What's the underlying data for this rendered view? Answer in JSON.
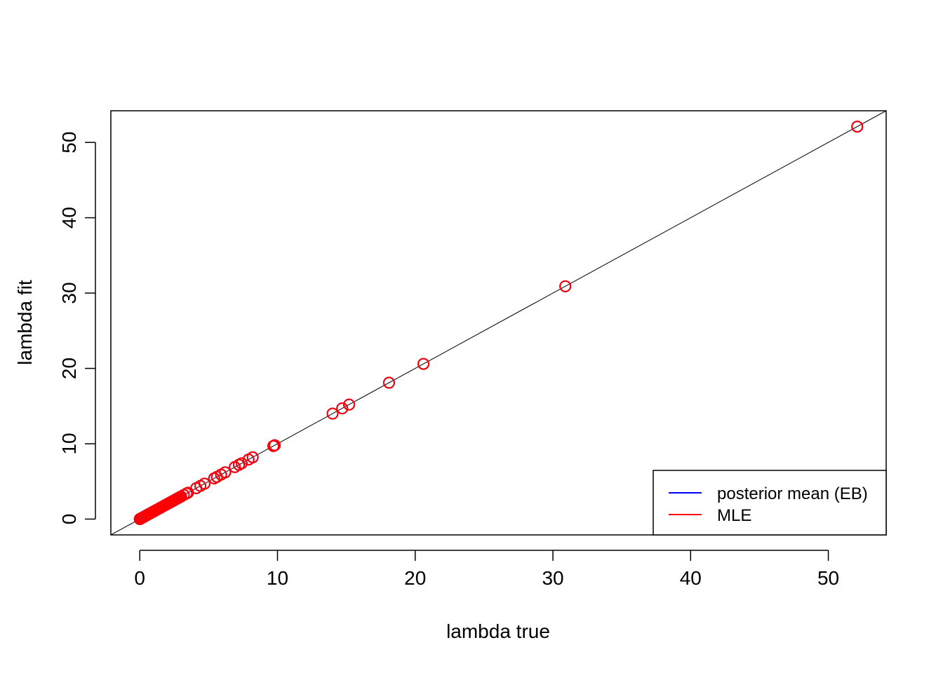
{
  "chart_data": {
    "type": "scatter",
    "title": "",
    "xlabel": "lambda true",
    "ylabel": "lambda fit",
    "xlim": [
      -2.1,
      54.2
    ],
    "ylim": [
      -2.1,
      54.2
    ],
    "xticks": [
      0,
      10,
      20,
      30,
      40,
      50
    ],
    "yticks": [
      0,
      10,
      20,
      30,
      40,
      50
    ],
    "xtick_labels": [
      "0",
      "10",
      "20",
      "30",
      "40",
      "50"
    ],
    "ytick_labels": [
      "0",
      "10",
      "20",
      "30",
      "40",
      "50"
    ],
    "grid": false,
    "reference_line": {
      "slope": 1,
      "intercept": 0,
      "color": "#000000"
    },
    "legend": {
      "position": "bottom-right",
      "entries": [
        {
          "label": "posterior mean (EB)",
          "color": "#0000FF"
        },
        {
          "label": "MLE",
          "color": "#FF0000"
        }
      ]
    },
    "series": [
      {
        "name": "posterior mean (EB)",
        "color": "#0000FF",
        "marker": "open-circle",
        "x": [
          0.0,
          0.02,
          0.04,
          0.06,
          0.08,
          0.1,
          0.15,
          0.2,
          0.25,
          0.3,
          0.4,
          0.5,
          0.6,
          0.7,
          0.8,
          0.9,
          1.0,
          1.1,
          1.2,
          1.3,
          1.4,
          1.5,
          1.6,
          1.7,
          1.8,
          1.9,
          2.0,
          2.1,
          2.2,
          2.3,
          2.4,
          2.5,
          2.6,
          2.7,
          2.8,
          2.9,
          3.0,
          3.2,
          3.4,
          3.5,
          4.1,
          4.4,
          4.7,
          5.4,
          5.6,
          5.9,
          6.2,
          6.9,
          7.2,
          7.4,
          7.9,
          8.2,
          9.7,
          9.8,
          14.0,
          14.7,
          15.2,
          18.1,
          20.6,
          30.9,
          52.1
        ],
        "y": [
          0.0,
          0.02,
          0.04,
          0.06,
          0.08,
          0.1,
          0.15,
          0.2,
          0.25,
          0.3,
          0.4,
          0.5,
          0.6,
          0.7,
          0.8,
          0.9,
          1.0,
          1.1,
          1.2,
          1.3,
          1.4,
          1.5,
          1.6,
          1.7,
          1.8,
          1.9,
          2.0,
          2.1,
          2.2,
          2.3,
          2.4,
          2.5,
          2.6,
          2.7,
          2.8,
          2.9,
          3.0,
          3.2,
          3.4,
          3.5,
          4.1,
          4.4,
          4.7,
          5.4,
          5.6,
          5.9,
          6.2,
          6.9,
          7.2,
          7.4,
          7.9,
          8.2,
          9.7,
          9.8,
          14.0,
          14.7,
          15.2,
          18.1,
          20.6,
          30.9,
          52.1
        ]
      },
      {
        "name": "MLE",
        "color": "#FF0000",
        "marker": "open-circle",
        "x": [
          0.0,
          0.02,
          0.04,
          0.06,
          0.08,
          0.1,
          0.15,
          0.2,
          0.25,
          0.3,
          0.4,
          0.5,
          0.6,
          0.7,
          0.8,
          0.9,
          1.0,
          1.1,
          1.2,
          1.3,
          1.4,
          1.5,
          1.6,
          1.7,
          1.8,
          1.9,
          2.0,
          2.1,
          2.2,
          2.3,
          2.4,
          2.5,
          2.6,
          2.7,
          2.8,
          2.9,
          3.0,
          3.2,
          3.4,
          3.5,
          4.1,
          4.4,
          4.7,
          5.4,
          5.6,
          5.9,
          6.2,
          6.9,
          7.2,
          7.4,
          7.9,
          8.2,
          9.7,
          9.8,
          14.0,
          14.7,
          15.2,
          18.1,
          20.6,
          30.9,
          52.1
        ],
        "y": [
          0.0,
          0.02,
          0.04,
          0.06,
          0.08,
          0.1,
          0.15,
          0.2,
          0.25,
          0.3,
          0.4,
          0.5,
          0.6,
          0.7,
          0.8,
          0.9,
          1.0,
          1.1,
          1.2,
          1.3,
          1.4,
          1.5,
          1.6,
          1.7,
          1.8,
          1.9,
          2.0,
          2.1,
          2.2,
          2.3,
          2.4,
          2.5,
          2.6,
          2.7,
          2.8,
          2.9,
          3.0,
          3.2,
          3.4,
          3.5,
          4.1,
          4.4,
          4.7,
          5.4,
          5.6,
          5.9,
          6.2,
          6.9,
          7.2,
          7.4,
          7.9,
          8.2,
          9.7,
          9.8,
          14.0,
          14.7,
          15.2,
          18.1,
          20.6,
          30.9,
          52.1
        ]
      }
    ]
  }
}
